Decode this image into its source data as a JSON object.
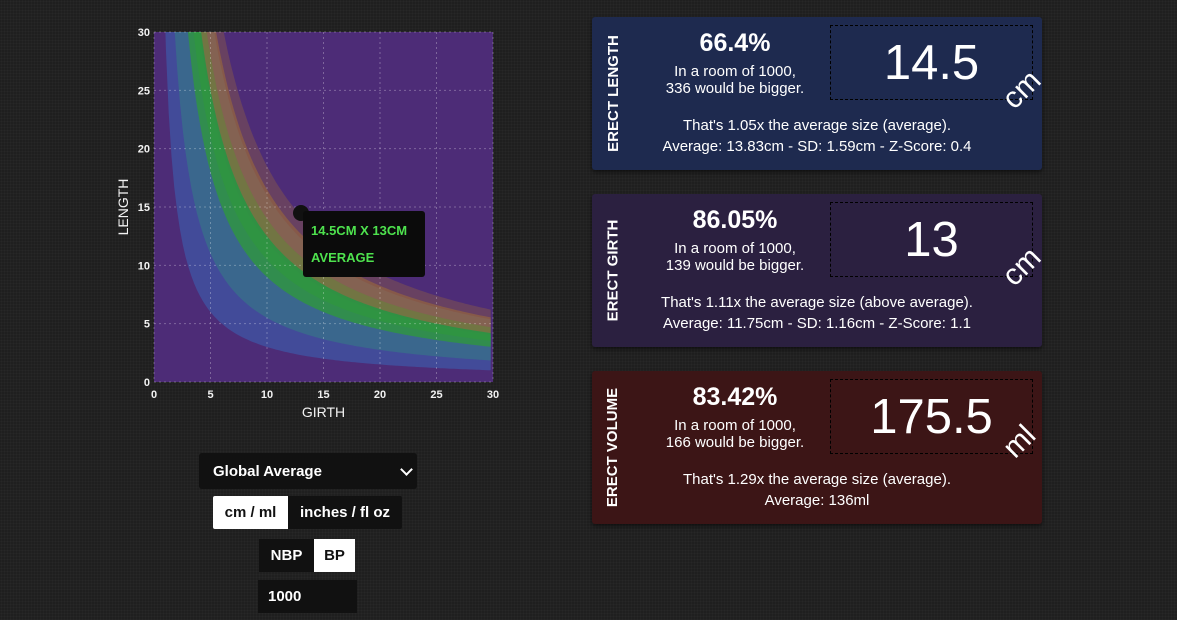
{
  "chart": {
    "xlabel": "GIRTH",
    "ylabel": "LENGTH",
    "x_ticks": [
      "0",
      "5",
      "10",
      "15",
      "20",
      "25",
      "30"
    ],
    "y_ticks": [
      "0",
      "5",
      "10",
      "15",
      "20",
      "25",
      "30"
    ],
    "xlim": [
      0,
      30
    ],
    "ylim": [
      0,
      30
    ],
    "grid": true,
    "point": {
      "girth": 13,
      "length": 14.5
    },
    "tooltip": {
      "line1": "14.5CM X 13CM",
      "line2": "AVERAGE"
    },
    "colors": {
      "background": "#4d2c77",
      "band_blue": "#3a6a8c",
      "band_green": "#2f9a3a",
      "band_orange": "#9c6a3a",
      "inner_blue": "#3a66b6",
      "tooltip_text": "#4ee24e"
    }
  },
  "controls": {
    "region_select": "Global Average",
    "units": {
      "metric": "cm / ml",
      "imperial": "inches / fl oz",
      "selected": "metric"
    },
    "mode": {
      "nbp": "NBP",
      "bp": "BP",
      "selected": "bp"
    },
    "room_size": "1000"
  },
  "cards": {
    "length": {
      "label": "ERECT LENGTH",
      "percent": "66.4%",
      "room_line1": "In a room of 1000,",
      "room_line2": "336 would be bigger.",
      "value": "14.5",
      "unit": "cm",
      "info_line1": "That's 1.05x the average size (average).",
      "info_line2": "Average: 13.83cm - SD: 1.59cm - Z-Score: 0.4",
      "color": "#1e2a4f"
    },
    "girth": {
      "label": "ERECT GIRTH",
      "percent": "86.05%",
      "room_line1": "In a room of 1000,",
      "room_line2": "139 would be bigger.",
      "value": "13",
      "unit": "cm",
      "info_line1": "That's 1.11x the average size (above average).",
      "info_line2": "Average: 11.75cm - SD: 1.16cm - Z-Score: 1.1",
      "color": "#2b2040"
    },
    "volume": {
      "label": "ERECT VOLUME",
      "percent": "83.42%",
      "room_line1": "In a room of 1000,",
      "room_line2": "166 would be bigger.",
      "value": "175.5",
      "unit": "ml",
      "info_line1": "That's 1.29x the average size (average).",
      "info_line2": "Average: 136ml",
      "color": "#3c1516"
    }
  }
}
